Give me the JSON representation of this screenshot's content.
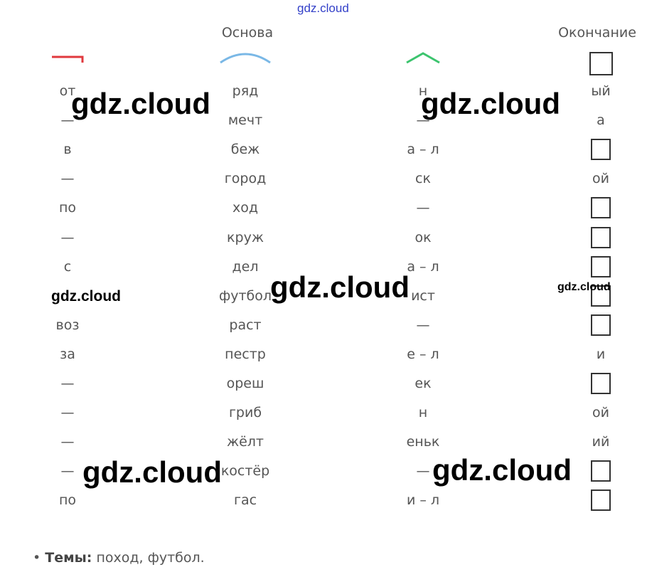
{
  "header": {
    "root": "Основа",
    "ending": "Окончание"
  },
  "rows": [
    [
      "от",
      "ряд",
      "н",
      "ый"
    ],
    [
      "—",
      "мечт",
      "—",
      "а"
    ],
    [
      "в",
      "беж",
      "а – л",
      null
    ],
    [
      "—",
      "город",
      "ск",
      "ой"
    ],
    [
      "по",
      "ход",
      "—",
      null
    ],
    [
      "—",
      "круж",
      "ок",
      null
    ],
    [
      "с",
      "дел",
      "а – л",
      null
    ],
    [
      null,
      "футбол",
      "ист",
      null
    ],
    [
      "воз",
      "раст",
      "—",
      null
    ],
    [
      "за",
      "пестр",
      "е – л",
      "и"
    ],
    [
      "—",
      "ореш",
      "ек",
      null
    ],
    [
      "—",
      "гриб",
      "н",
      "ой"
    ],
    [
      "—",
      "жёлт",
      "еньк",
      "ий"
    ],
    [
      "—",
      "костёр",
      "—",
      null
    ],
    [
      "по",
      "гас",
      "и – л",
      null
    ]
  ],
  "footer": {
    "label": "Темы:",
    "text": "поход, футбол."
  },
  "watermarks": [
    "gdz.cloud",
    "gdz.cloud",
    "gdz.cloud",
    "gdz.cloud",
    "gdz.cloud",
    "gdz.cloud",
    "gdz.cloud",
    "gdz.cloud"
  ]
}
